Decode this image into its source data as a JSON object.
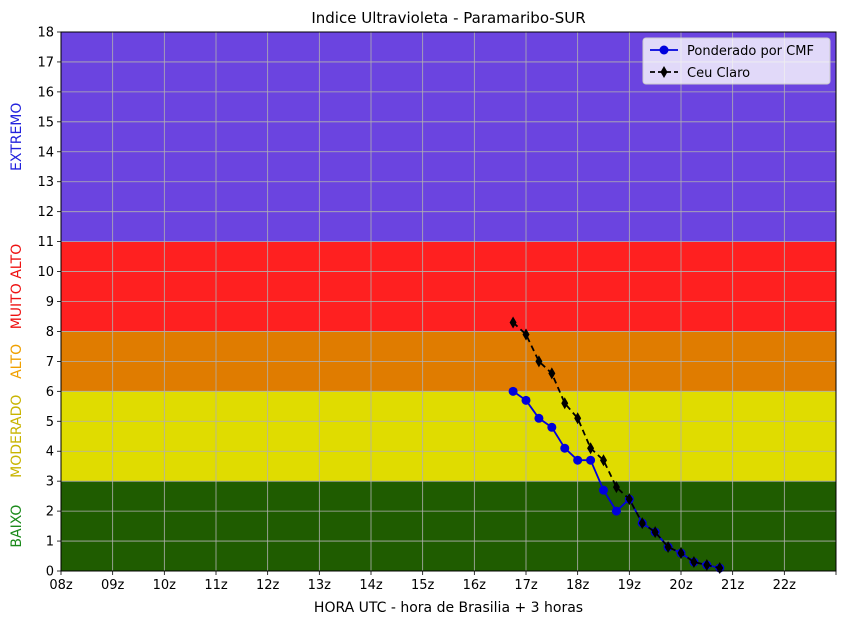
{
  "chart_data": {
    "type": "line",
    "title": "Indice Ultravioleta - Paramaribo-SUR",
    "xlabel": "HORA UTC - hora de Brasilia + 3 horas",
    "ylabel": "",
    "xlim": [
      8,
      23
    ],
    "ylim": [
      0,
      18
    ],
    "grid": true,
    "legend_position": "top-right",
    "x_ticks": [
      8,
      9,
      10,
      11,
      12,
      13,
      14,
      15,
      16,
      17,
      18,
      19,
      20,
      21,
      22,
      23
    ],
    "x_tick_labels": [
      "08z",
      "09z",
      "10z",
      "11z",
      "12z",
      "13z",
      "14z",
      "15z",
      "16z",
      "17z",
      "18z",
      "19z",
      "20z",
      "21z",
      "22z",
      ""
    ],
    "y_ticks": [
      0,
      1,
      2,
      3,
      4,
      5,
      6,
      7,
      8,
      9,
      10,
      11,
      12,
      13,
      14,
      15,
      16,
      17,
      18
    ],
    "y_tick_labels": [
      "0",
      "1",
      "2",
      "3",
      "4",
      "5",
      "6",
      "7",
      "8",
      "9",
      "10",
      "11",
      "12",
      "13",
      "14",
      "15",
      "16",
      "17",
      "18"
    ],
    "bands": [
      {
        "label": "BAIXO",
        "from": 0,
        "to": 3,
        "color": "#1f5c00",
        "label_color": "#1a8a1a"
      },
      {
        "label": "MODERADO",
        "from": 3,
        "to": 6,
        "color": "#e0dc00",
        "label_color": "#c8b400"
      },
      {
        "label": "ALTO",
        "from": 6,
        "to": 8,
        "color": "#e07c00",
        "label_color": "#f0a000"
      },
      {
        "label": "MUITO ALTO",
        "from": 8,
        "to": 11,
        "color": "#ff2020",
        "label_color": "#ee1111"
      },
      {
        "label": "EXTREMO",
        "from": 11,
        "to": 18,
        "color": "#6b44e0",
        "label_color": "#2222dd"
      }
    ],
    "series": [
      {
        "name": "Ponderado por CMF",
        "color": "#0000dd",
        "marker": "circle",
        "linestyle": "solid",
        "x": [
          16.75,
          17.0,
          17.25,
          17.5,
          17.75,
          18.0,
          18.25,
          18.5,
          18.75,
          19.0,
          19.25,
          19.5,
          19.75,
          20.0,
          20.25,
          20.5,
          20.75
        ],
        "values": [
          6.0,
          5.7,
          5.1,
          4.8,
          4.1,
          3.7,
          3.7,
          2.7,
          2.0,
          2.4,
          1.6,
          1.3,
          0.8,
          0.6,
          0.3,
          0.2,
          0.1
        ]
      },
      {
        "name": "Ceu Claro",
        "color": "#000000",
        "marker": "diamond",
        "linestyle": "dashed",
        "x": [
          16.75,
          17.0,
          17.25,
          17.5,
          17.75,
          18.0,
          18.25,
          18.5,
          18.75,
          19.0,
          19.25,
          19.5,
          19.75,
          20.0,
          20.25,
          20.5,
          20.75
        ],
        "values": [
          8.3,
          7.9,
          7.0,
          6.6,
          5.6,
          5.1,
          4.1,
          3.7,
          2.8,
          2.4,
          1.6,
          1.3,
          0.8,
          0.6,
          0.3,
          0.2,
          0.1
        ]
      }
    ]
  }
}
